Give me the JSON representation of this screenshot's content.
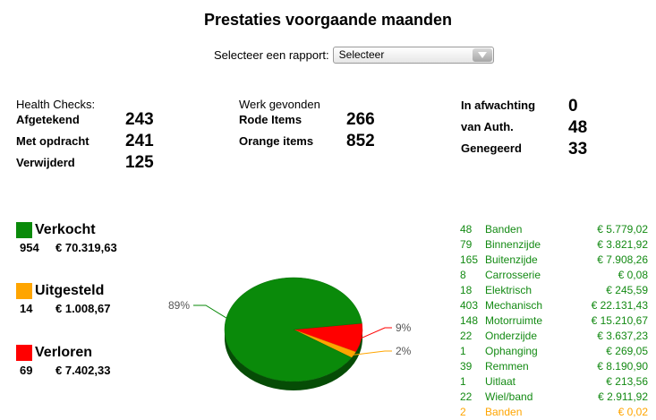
{
  "title": "Prestaties voorgaande maanden",
  "report": {
    "label": "Selecteer een rapport:",
    "selected": "Selecteer"
  },
  "health_checks": {
    "header": "Health Checks:",
    "rows": [
      {
        "label": "Afgetekend",
        "value": "243"
      },
      {
        "label": "Met opdracht",
        "value": "241"
      },
      {
        "label": "Verwijderd",
        "value": "125"
      }
    ]
  },
  "werk": {
    "header": "Werk gevonden",
    "rows": [
      {
        "label": "Rode Items",
        "value": "266"
      },
      {
        "label": "Orange items",
        "value": "852"
      }
    ]
  },
  "status": {
    "rows": [
      {
        "label": "In afwachting",
        "value": "0"
      },
      {
        "label": "van Auth.",
        "value": "48"
      },
      {
        "label": "Genegeerd",
        "value": "33"
      }
    ]
  },
  "legend": [
    {
      "name": "Verkocht",
      "count": "954",
      "amount": "€ 70.319,63",
      "color": "#0a8a0a"
    },
    {
      "name": "Uitgesteld",
      "count": "14",
      "amount": "€ 1.008,67",
      "color": "#ffa500"
    },
    {
      "name": "Verloren",
      "count": "69",
      "amount": "€ 7.402,33",
      "color": "#ff0000"
    }
  ],
  "chart_data": {
    "type": "pie",
    "slices": [
      {
        "label": "89%",
        "value": 89,
        "color": "#0a8a0a"
      },
      {
        "label": "2%",
        "value": 2,
        "color": "#ffa500"
      },
      {
        "label": "9%",
        "value": 9,
        "color": "#ff0000"
      }
    ]
  },
  "table": {
    "rows": [
      {
        "count": "48",
        "name": "Banden",
        "amount": "€ 5.779,02",
        "color": "#138a13"
      },
      {
        "count": "79",
        "name": "Binnenzijde",
        "amount": "€ 3.821,92",
        "color": "#138a13"
      },
      {
        "count": "165",
        "name": "Buitenzijde",
        "amount": "€ 7.908,26",
        "color": "#138a13"
      },
      {
        "count": "8",
        "name": "Carrosserie",
        "amount": "€ 0,08",
        "color": "#138a13"
      },
      {
        "count": "18",
        "name": "Elektrisch",
        "amount": "€ 245,59",
        "color": "#138a13"
      },
      {
        "count": "403",
        "name": "Mechanisch",
        "amount": "€ 22.131,43",
        "color": "#138a13"
      },
      {
        "count": "148",
        "name": "Motorruimte",
        "amount": "€ 15.210,67",
        "color": "#138a13"
      },
      {
        "count": "22",
        "name": "Onderzijde",
        "amount": "€ 3.637,23",
        "color": "#138a13"
      },
      {
        "count": "1",
        "name": "Ophanging",
        "amount": "€ 269,05",
        "color": "#138a13"
      },
      {
        "count": "39",
        "name": "Remmen",
        "amount": "€ 8.190,90",
        "color": "#138a13"
      },
      {
        "count": "1",
        "name": "Uitlaat",
        "amount": "€ 213,56",
        "color": "#138a13"
      },
      {
        "count": "22",
        "name": "Wiel/band",
        "amount": "€ 2.911,92",
        "color": "#138a13"
      },
      {
        "count": "2",
        "name": "Banden",
        "amount": "€ 0,02",
        "color": "#ffa500"
      }
    ]
  }
}
